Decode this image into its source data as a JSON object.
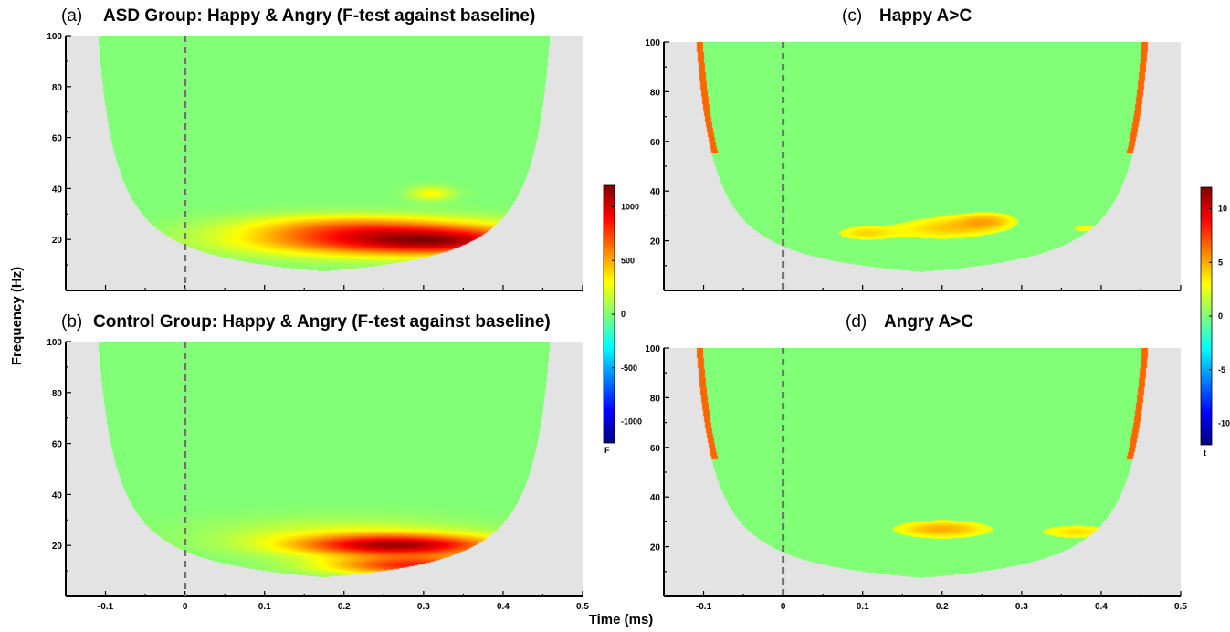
{
  "figure": {
    "ylabel": "Frequency (Hz)",
    "xlabel": "Time (ms)"
  },
  "colors": {
    "background_masked": "#e3e3e3",
    "neutral_green": "#80ff77",
    "dashed_line": "#707070",
    "colormap": [
      "#00007f",
      "#0000ff",
      "#00ffff",
      "#80ff77",
      "#ffff00",
      "#ff0000",
      "#7f0000"
    ]
  },
  "chart_data": [
    {
      "type": "heatmap",
      "panel": "(a)",
      "title": "ASD Group: Happy & Angry (F-test against baseline)",
      "x_range": [
        -0.15,
        0.5
      ],
      "y_range": [
        0,
        100
      ],
      "xticks": [
        "-0.1",
        "0",
        "0.1",
        "0.2",
        "0.3",
        "0.4",
        "0.5"
      ],
      "yticks": [
        "20",
        "40",
        "60",
        "80",
        "100"
      ],
      "show_xticks": false,
      "stimulus_onset": 0,
      "blobs": [
        {
          "t": 0.27,
          "f": 20,
          "st": 0.13,
          "sf": 4.5,
          "v": 1000
        },
        {
          "t": 0.33,
          "f": 19,
          "st": 0.06,
          "sf": 3,
          "v": 250
        },
        {
          "t": 0.31,
          "f": 38,
          "st": 0.02,
          "sf": 2,
          "v": 300
        },
        {
          "t": 0.2,
          "f": 26,
          "st": 0.09,
          "sf": 3,
          "v": 280
        }
      ]
    },
    {
      "type": "heatmap",
      "panel": "(b)",
      "title": "Control Group: Happy & Angry (F-test against baseline)",
      "x_range": [
        -0.15,
        0.5
      ],
      "y_range": [
        0,
        100
      ],
      "xticks": [
        "-0.1",
        "0",
        "0.1",
        "0.2",
        "0.3",
        "0.4",
        "0.5"
      ],
      "yticks": [
        "20",
        "40",
        "60",
        "80",
        "100"
      ],
      "show_xticks": true,
      "stimulus_onset": 0,
      "blobs": [
        {
          "t": 0.27,
          "f": 20,
          "st": 0.09,
          "sf": 3,
          "v": 1000
        },
        {
          "t": 0.29,
          "f": 12,
          "st": 0.08,
          "sf": 2.5,
          "v": 800
        },
        {
          "t": 0.2,
          "f": 24,
          "st": 0.12,
          "sf": 5,
          "v": 200
        }
      ]
    },
    {
      "type": "heatmap",
      "panel": "(c)",
      "title": "Happy A>C",
      "x_range": [
        -0.15,
        0.5
      ],
      "y_range": [
        0,
        100
      ],
      "xticks": [
        "-0.1",
        "0",
        "0.1",
        "0.2",
        "0.3",
        "0.4",
        "0.5"
      ],
      "yticks": [
        "20",
        "40",
        "60",
        "80",
        "100"
      ],
      "show_xticks": false,
      "stimulus_onset": 0,
      "blobs": [
        {
          "t": 0.2,
          "f": 25,
          "st": 0.05,
          "sf": 4,
          "v": 4
        },
        {
          "t": 0.1,
          "f": 23,
          "st": 0.03,
          "sf": 2.5,
          "v": 3.5
        },
        {
          "t": 0.26,
          "f": 28,
          "st": 0.03,
          "sf": 3,
          "v": 3.6
        },
        {
          "t": 0.38,
          "f": 25,
          "st": 0.018,
          "sf": 1.5,
          "v": 3.2
        }
      ]
    },
    {
      "type": "heatmap",
      "panel": "(d)",
      "title": "Angry A>C",
      "x_range": [
        -0.15,
        0.5
      ],
      "y_range": [
        0,
        100
      ],
      "xticks": [
        "-0.1",
        "0",
        "0.1",
        "0.2",
        "0.3",
        "0.4",
        "0.5"
      ],
      "yticks": [
        "20",
        "40",
        "60",
        "80",
        "100"
      ],
      "show_xticks": true,
      "stimulus_onset": 0,
      "blobs": [
        {
          "t": 0.2,
          "f": 27,
          "st": 0.05,
          "sf": 3,
          "v": 5
        },
        {
          "t": 0.37,
          "f": 26,
          "st": 0.04,
          "sf": 2.5,
          "v": 3.8
        }
      ]
    }
  ],
  "colorbars": [
    {
      "label": "F",
      "range": [
        -1200,
        1200
      ],
      "ticks": [
        "1000",
        "500",
        "0",
        "-500",
        "-1000"
      ],
      "tick_values": [
        1000,
        500,
        0,
        -500,
        -1000
      ]
    },
    {
      "label": "t",
      "range": [
        -12,
        12
      ],
      "ticks": [
        "10",
        "5",
        "0",
        "-5",
        "-10"
      ],
      "tick_values": [
        10,
        5,
        0,
        -5,
        -10
      ]
    }
  ]
}
